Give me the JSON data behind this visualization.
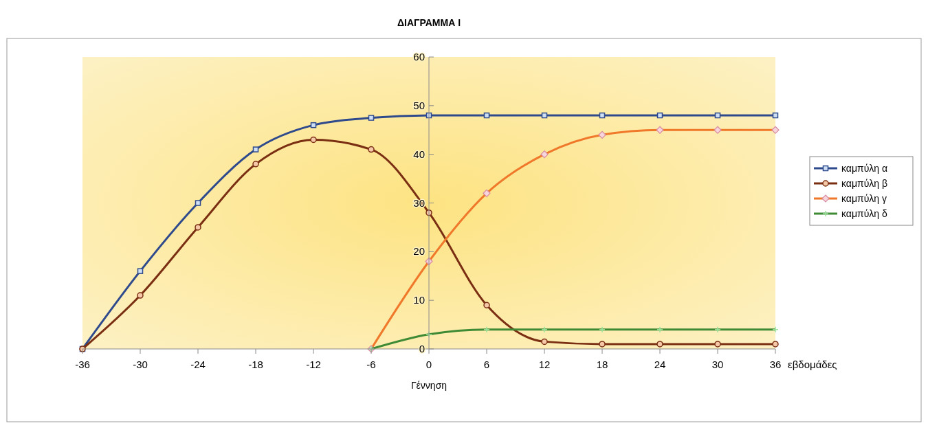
{
  "chart_data": {
    "type": "line",
    "title": "ΔΙΑΓΡΑΜΜΑ Ι",
    "xlabel": "εβδομάδες",
    "annotations": [
      "Γέννηση"
    ],
    "x": [
      -36,
      -30,
      -24,
      -18,
      -12,
      -6,
      0,
      6,
      12,
      18,
      24,
      30,
      36
    ],
    "series": [
      {
        "name": "καμπύλη α",
        "color": "#2e4a8c",
        "marker": "square",
        "values": [
          0,
          16,
          30,
          41,
          46,
          47.5,
          48,
          48,
          48,
          48,
          48,
          48,
          48
        ]
      },
      {
        "name": "καμπύλη β",
        "color": "#7a2e12",
        "marker": "circle",
        "values": [
          0,
          11,
          25,
          38,
          43,
          41,
          28,
          9,
          1.5,
          1,
          1,
          1,
          1
        ]
      },
      {
        "name": "καμπύλη γ",
        "color": "#f0782a",
        "marker": "diamond",
        "x": [
          -6,
          0,
          6,
          12,
          18,
          24,
          30,
          36
        ],
        "values": [
          0,
          18,
          32,
          40,
          44,
          45,
          45,
          45
        ]
      },
      {
        "name": "καμπύλη δ",
        "color": "#3f8a35",
        "marker": "cross",
        "x": [
          -6,
          0,
          6,
          12,
          18,
          24,
          30,
          36
        ],
        "values": [
          0,
          3,
          4,
          4,
          4,
          4,
          4,
          4
        ]
      }
    ],
    "xlim": [
      -36,
      36
    ],
    "xticks": [
      -36,
      -30,
      -24,
      -18,
      -12,
      -6,
      0,
      6,
      12,
      18,
      24,
      30,
      36
    ],
    "ylim": [
      0,
      60
    ],
    "yticks": [
      0,
      10,
      20,
      30,
      40,
      50,
      60
    ],
    "legend": "right"
  }
}
